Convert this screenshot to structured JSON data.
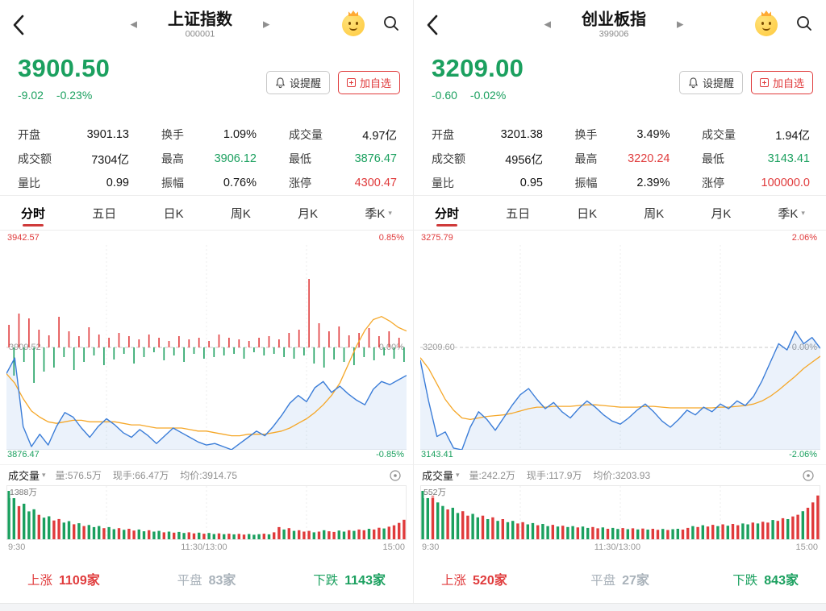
{
  "colors": {
    "up": "#e03b3c",
    "down": "#1ba05f",
    "flat": "#a9b2ba",
    "accent_underline": "#cf3a3a",
    "price_line": "#3b7dd8",
    "avg_line": "#f5a728",
    "area_fill": "rgba(62,126,216,0.10)"
  },
  "panels": [
    {
      "header": {
        "title": "上证指数",
        "code": "000001"
      },
      "price": {
        "value": "3900.50",
        "change": "-9.02",
        "pct": "-0.23%",
        "direction": "down"
      },
      "buttons": {
        "alert": "设提醒",
        "watch": "加自选"
      },
      "stats": [
        {
          "label": "开盘",
          "value": "3901.13",
          "tone": "neutral"
        },
        {
          "label": "换手",
          "value": "1.09%",
          "tone": "neutral"
        },
        {
          "label": "成交量",
          "value": "4.97亿",
          "tone": "neutral"
        },
        {
          "label": "成交额",
          "value": "7304亿",
          "tone": "neutral"
        },
        {
          "label": "最高",
          "value": "3906.12",
          "tone": "down"
        },
        {
          "label": "最低",
          "value": "3876.47",
          "tone": "down"
        },
        {
          "label": "量比",
          "value": "0.99",
          "tone": "neutral"
        },
        {
          "label": "振幅",
          "value": "0.76%",
          "tone": "neutral"
        },
        {
          "label": "涨停",
          "value": "4300.47",
          "tone": "up"
        }
      ],
      "tabs": [
        {
          "label": "分时",
          "active": true
        },
        {
          "label": "五日"
        },
        {
          "label": "日K"
        },
        {
          "label": "周K"
        },
        {
          "label": "月K"
        },
        {
          "label": "季K",
          "caret": true
        }
      ],
      "chart_labels": {
        "high": "3942.57",
        "high_pct": "0.85%",
        "mid": "3909.52",
        "mid_pct": "0.00%",
        "low": "3876.47",
        "low_pct": "-0.85%"
      },
      "volume_bar": {
        "name": "成交量",
        "vol": "量:576.5万",
        "hand": "现手:66.47万",
        "avg": "均价:3914.75",
        "max": "1388万"
      },
      "x_ticks": [
        "9:30",
        "11:30/13:00",
        "15:00"
      ],
      "breadth": [
        {
          "label": "上涨",
          "count": "1109家",
          "tone": "up"
        },
        {
          "label": "平盘",
          "count": "83家",
          "tone": "flat"
        },
        {
          "label": "下跌",
          "count": "1143家",
          "tone": "down"
        }
      ],
      "chart_index": 0
    },
    {
      "header": {
        "title": "创业板指",
        "code": "399006"
      },
      "price": {
        "value": "3209.00",
        "change": "-0.60",
        "pct": "-0.02%",
        "direction": "down"
      },
      "buttons": {
        "alert": "设提醒",
        "watch": "加自选"
      },
      "stats": [
        {
          "label": "开盘",
          "value": "3201.38",
          "tone": "neutral"
        },
        {
          "label": "换手",
          "value": "3.49%",
          "tone": "neutral"
        },
        {
          "label": "成交量",
          "value": "1.94亿",
          "tone": "neutral"
        },
        {
          "label": "成交额",
          "value": "4956亿",
          "tone": "neutral"
        },
        {
          "label": "最高",
          "value": "3220.24",
          "tone": "up"
        },
        {
          "label": "最低",
          "value": "3143.41",
          "tone": "down"
        },
        {
          "label": "量比",
          "value": "0.95",
          "tone": "neutral"
        },
        {
          "label": "振幅",
          "value": "2.39%",
          "tone": "neutral"
        },
        {
          "label": "涨停",
          "value": "100000.0",
          "tone": "up"
        }
      ],
      "tabs": [
        {
          "label": "分时",
          "active": true
        },
        {
          "label": "五日"
        },
        {
          "label": "日K"
        },
        {
          "label": "周K"
        },
        {
          "label": "月K"
        },
        {
          "label": "季K",
          "caret": true
        }
      ],
      "chart_labels": {
        "high": "3275.79",
        "high_pct": "2.06%",
        "mid": "3209.60",
        "mid_pct": "0.00%",
        "low": "3143.41",
        "low_pct": "-2.06%"
      },
      "volume_bar": {
        "name": "成交量",
        "vol": "量:242.2万",
        "hand": "现手:117.9万",
        "avg": "均价:3203.93",
        "max": "552万"
      },
      "x_ticks": [
        "9:30",
        "11:30/13:00",
        "15:00"
      ],
      "breadth": [
        {
          "label": "上涨",
          "count": "520家",
          "tone": "up"
        },
        {
          "label": "平盘",
          "count": "27家",
          "tone": "flat"
        },
        {
          "label": "下跌",
          "count": "843家",
          "tone": "down"
        }
      ],
      "chart_index": 1
    }
  ],
  "chart_data": [
    {
      "type": "line",
      "title": "上证指数 分时",
      "x_ticks": [
        "9:30",
        "11:30/13:00",
        "15:00"
      ],
      "ylim": [
        3876.47,
        3942.57
      ],
      "prev_close": 3909.52,
      "pct_range": [
        -0.85,
        0.85
      ],
      "series": [
        {
          "name": "price",
          "values": [
            3901.1,
            3906.1,
            3884,
            3877.5,
            3881.5,
            3878,
            3884,
            3888.5,
            3887,
            3883.5,
            3880.5,
            3884,
            3886.5,
            3884.5,
            3882,
            3880.5,
            3883,
            3881,
            3878.5,
            3881,
            3883.5,
            3882,
            3880.5,
            3879,
            3878,
            3878.5,
            3877.5,
            3876.5,
            3878.5,
            3880.5,
            3882.5,
            3881,
            3884,
            3887.5,
            3891.5,
            3894,
            3892,
            3896.5,
            3898.5,
            3895,
            3897,
            3894.5,
            3892.5,
            3891,
            3896,
            3898.5,
            3897.5,
            3899,
            3900.5
          ]
        },
        {
          "name": "avg_price",
          "values": [
            3901,
            3898,
            3893,
            3889,
            3887,
            3885.5,
            3885,
            3885.5,
            3886,
            3886,
            3885.5,
            3885.5,
            3885.5,
            3885.5,
            3885,
            3884.5,
            3884.5,
            3884,
            3883.5,
            3883.5,
            3883.5,
            3883.5,
            3883,
            3882.5,
            3882.5,
            3882,
            3881.5,
            3881,
            3881,
            3881.5,
            3881.5,
            3881.5,
            3882,
            3882.5,
            3883.5,
            3885,
            3886.5,
            3888.5,
            3891,
            3894,
            3898,
            3904,
            3910,
            3915,
            3918.5,
            3919.5,
            3918,
            3916,
            3914.8
          ]
        }
      ],
      "delta_bars": [
        28,
        -35,
        42,
        -18,
        36,
        -44,
        22,
        -30,
        15,
        -25,
        38,
        -12,
        20,
        -28,
        14,
        -18,
        25,
        -10,
        16,
        -22,
        12,
        -15,
        18,
        -8,
        14,
        -20,
        10,
        -12,
        16,
        -6,
        12,
        -16,
        8,
        -10,
        14,
        -18,
        10,
        -8,
        12,
        -14,
        8,
        -12,
        16,
        -10,
        12,
        -8,
        10,
        -14,
        8,
        -6,
        12,
        -10,
        14,
        -8,
        10,
        -12,
        18,
        -14,
        22,
        -10,
        85,
        -20,
        30,
        -25,
        20,
        -15,
        26,
        -18,
        15,
        -22,
        18,
        -12,
        24,
        -16,
        14,
        -10,
        20,
        -14,
        12,
        -18
      ],
      "volume": {
        "unit": "万",
        "max_label": "1388万",
        "values": [
          1388,
          1180,
          950,
          1020,
          800,
          860,
          700,
          620,
          660,
          540,
          580,
          480,
          520,
          430,
          460,
          380,
          410,
          350,
          380,
          320,
          350,
          290,
          320,
          270,
          300,
          250,
          280,
          230,
          260,
          220,
          240,
          200,
          220,
          190,
          210,
          180,
          200,
          170,
          190,
          160,
          180,
          150,
          170,
          145,
          160,
          140,
          155,
          135,
          150,
          130,
          145,
          160,
          140,
          200,
          350,
          280,
          320,
          240,
          260,
          220,
          240,
          200,
          220,
          260,
          230,
          210,
          250,
          220,
          260,
          240,
          280,
          260,
          300,
          280,
          330,
          310,
          360,
          400,
          470,
          560
        ],
        "colors": "ggrgggrggrrggrgrgggrggrgrrggrggrgrggrrgrggrgrgrrgggrgrrgrgrrrgrgrrggrgrrgrrgrrrr"
      }
    },
    {
      "type": "line",
      "title": "创业板指 分时",
      "x_ticks": [
        "9:30",
        "11:30/13:00",
        "15:00"
      ],
      "ylim": [
        3143.41,
        3275.79
      ],
      "prev_close": 3209.6,
      "pct_range": [
        -2.06,
        2.06
      ],
      "series": [
        {
          "name": "price",
          "values": [
            3201.4,
            3175,
            3152,
            3155,
            3144.5,
            3143.4,
            3158,
            3168,
            3163,
            3156,
            3164,
            3172,
            3179,
            3183,
            3176,
            3170,
            3174,
            3168,
            3164,
            3170,
            3175,
            3171,
            3166,
            3162,
            3160,
            3164,
            3169,
            3173,
            3168,
            3162,
            3158,
            3163,
            3169,
            3166,
            3171,
            3168,
            3173,
            3170,
            3175,
            3172,
            3178,
            3188,
            3200,
            3212,
            3208,
            3220.2,
            3212,
            3216,
            3209
          ]
        },
        {
          "name": "avg_price",
          "values": [
            3203,
            3196,
            3186,
            3176,
            3169,
            3164,
            3163,
            3164,
            3165,
            3165.5,
            3166,
            3167,
            3168.5,
            3170,
            3171,
            3171,
            3171.5,
            3171.5,
            3171.5,
            3172,
            3172.5,
            3172.5,
            3172,
            3171.5,
            3171,
            3171,
            3171,
            3171.5,
            3171.5,
            3171,
            3170.5,
            3170.5,
            3170.5,
            3170.5,
            3170.5,
            3170.5,
            3171,
            3171,
            3171.5,
            3172,
            3173,
            3175,
            3178,
            3182,
            3186.5,
            3191,
            3196,
            3200,
            3203.9
          ]
        }
      ],
      "delta_bars": [],
      "volume": {
        "unit": "万",
        "max_label": "552万",
        "values": [
          552,
          470,
          500,
          420,
          380,
          340,
          360,
          300,
          320,
          270,
          290,
          250,
          270,
          230,
          250,
          210,
          230,
          195,
          210,
          180,
          195,
          170,
          185,
          160,
          175,
          150,
          165,
          145,
          155,
          140,
          150,
          135,
          145,
          130,
          140,
          125,
          135,
          120,
          130,
          118,
          128,
          115,
          125,
          112,
          122,
          110,
          120,
          108,
          118,
          106,
          115,
          120,
          110,
          130,
          150,
          140,
          160,
          145,
          165,
          150,
          170,
          155,
          175,
          160,
          180,
          170,
          190,
          180,
          200,
          190,
          220,
          210,
          240,
          230,
          260,
          280,
          320,
          360,
          420,
          500
        ],
        "colors": "ggrggrggrrggrgrgrggrrggrggrgrggrggrrgrggrgrgrgrrgrggrrgrgrrgrgrrggrgrrgrrgrrgrrr"
      }
    }
  ]
}
